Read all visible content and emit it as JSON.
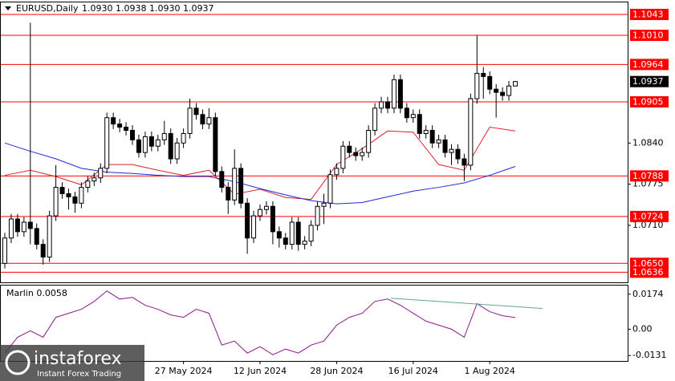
{
  "chart_data": {
    "type": "candlestick",
    "title": "EURUSD,Daily",
    "header_ohlc": "1.0930 1.0938 1.0930 1.0937",
    "categories": [
      null,
      null,
      null,
      null,
      null,
      null,
      null,
      null,
      null,
      null,
      null,
      null,
      null,
      null,
      null,
      null,
      null,
      null,
      null,
      null,
      null,
      null,
      null,
      null,
      null,
      null,
      null,
      null,
      "27 May 2024",
      null,
      null,
      null,
      null,
      null,
      null,
      null,
      null,
      null,
      null,
      null,
      "12 Jun 2024",
      null,
      null,
      null,
      null,
      null,
      null,
      null,
      null,
      null,
      null,
      null,
      "28 Jun 2024",
      null,
      null,
      null,
      null,
      null,
      null,
      null,
      null,
      null,
      null,
      null,
      "16 Jul 2024",
      null,
      null,
      null,
      null,
      null,
      null,
      null,
      null,
      null,
      null,
      null,
      "1 Aug 2024",
      null,
      null,
      null,
      null
    ],
    "open": [
      1.065,
      1.069,
      1.072,
      1.07,
      1.0715,
      1.0705,
      1.068,
      1.066,
      1.0725,
      1.077,
      1.076,
      1.0755,
      1.0745,
      1.077,
      1.078,
      1.0785,
      1.08,
      1.088,
      1.087,
      1.0865,
      1.086,
      1.0845,
      1.0825,
      1.085,
      1.0835,
      1.0845,
      1.0855,
      1.0815,
      1.084,
      1.0855,
      1.0895,
      1.0885,
      1.087,
      1.088,
      1.0795,
      1.077,
      1.075,
      1.08,
      1.0745,
      1.069,
      1.0725,
      1.0735,
      1.074,
      1.07,
      1.069,
      1.068,
      1.0715,
      1.068,
      1.0685,
      1.071,
      1.074,
      1.0745,
      1.079,
      1.08,
      1.0835,
      1.0825,
      1.082,
      1.0825,
      1.086,
      1.0895,
      1.0905,
      1.0895,
      1.094,
      1.0895,
      1.088,
      1.0885,
      1.0855,
      1.086,
      1.084,
      1.0845,
      1.0825,
      1.083,
      1.0815,
      1.0805,
      1.091,
      1.095,
      1.0945,
      1.0925,
      1.092,
      1.0915,
      1.093
    ],
    "high": [
      1.0698,
      1.0728,
      1.0728,
      1.0723,
      1.103,
      1.0713,
      1.0688,
      1.0733,
      1.0805,
      1.0778,
      1.0768,
      1.0763,
      1.0778,
      1.0788,
      1.0793,
      1.0808,
      1.0888,
      1.0888,
      1.0878,
      1.0873,
      1.0868,
      1.0853,
      1.0858,
      1.0858,
      1.0853,
      1.0875,
      1.0863,
      1.0848,
      1.0863,
      1.091,
      1.0903,
      1.0893,
      1.0895,
      1.0888,
      1.0803,
      1.0778,
      1.083,
      1.0808,
      1.0753,
      1.0733,
      1.0743,
      1.0748,
      1.0748,
      1.0708,
      1.0698,
      1.0723,
      1.0723,
      1.0693,
      1.0718,
      1.0748,
      1.076,
      1.0798,
      1.0808,
      1.0843,
      1.0843,
      1.0833,
      1.0833,
      1.0868,
      1.0903,
      1.0913,
      1.0913,
      1.0948,
      1.0948,
      1.0903,
      1.0893,
      1.0893,
      1.0868,
      1.0868,
      1.0853,
      1.0853,
      1.0838,
      1.0838,
      1.0823,
      1.0918,
      1.101,
      1.096,
      1.0953,
      1.0933,
      1.0928,
      1.0938,
      1.0938
    ],
    "low": [
      1.0642,
      1.0682,
      1.0692,
      1.0692,
      1.068,
      1.0672,
      1.0648,
      1.0652,
      1.0717,
      1.0752,
      1.0735,
      1.073,
      1.0737,
      1.0762,
      1.0772,
      1.0777,
      1.0792,
      1.0862,
      1.0857,
      1.0852,
      1.0837,
      1.0817,
      1.0817,
      1.0827,
      1.0827,
      1.0837,
      1.0807,
      1.0807,
      1.0832,
      1.0847,
      1.0877,
      1.0862,
      1.0862,
      1.0787,
      1.0762,
      1.0728,
      1.0742,
      1.0737,
      1.0665,
      1.0682,
      1.0717,
      1.0727,
      1.068,
      1.0675,
      1.0672,
      1.0672,
      1.067,
      1.0672,
      1.0677,
      1.0702,
      1.0712,
      1.0737,
      1.0782,
      1.0792,
      1.0817,
      1.0812,
      1.0812,
      1.0817,
      1.0852,
      1.0887,
      1.0887,
      1.0887,
      1.0887,
      1.0872,
      1.0872,
      1.0847,
      1.0847,
      1.0832,
      1.0832,
      1.0817,
      1.0805,
      1.0807,
      1.078,
      1.0797,
      1.0902,
      1.091,
      1.0917,
      1.088,
      1.0907,
      1.0907,
      1.093
    ],
    "close": [
      1.069,
      1.072,
      1.07,
      1.0715,
      1.0705,
      1.068,
      1.066,
      1.0725,
      1.077,
      1.076,
      1.0755,
      1.0745,
      1.077,
      1.078,
      1.0785,
      1.08,
      1.088,
      1.087,
      1.0865,
      1.086,
      1.0845,
      1.0825,
      1.085,
      1.0835,
      1.0845,
      1.0855,
      1.0815,
      1.084,
      1.0855,
      1.0895,
      1.0885,
      1.087,
      1.088,
      1.0795,
      1.077,
      1.075,
      1.08,
      1.0745,
      1.069,
      1.0725,
      1.0735,
      1.074,
      1.07,
      1.069,
      1.068,
      1.0715,
      1.068,
      1.0685,
      1.071,
      1.074,
      1.0745,
      1.079,
      1.08,
      1.0835,
      1.0825,
      1.082,
      1.0825,
      1.086,
      1.0895,
      1.0905,
      1.0895,
      1.094,
      1.0895,
      1.088,
      1.0885,
      1.0855,
      1.086,
      1.084,
      1.0845,
      1.0825,
      1.083,
      1.0815,
      1.0805,
      1.091,
      1.095,
      1.0945,
      1.0925,
      1.092,
      1.0915,
      1.093,
      1.0937
    ],
    "color": "#000000",
    "ylim": [
      1.062,
      1.1062
    ],
    "yticks": [
      {
        "value": 1.084,
        "label": "1.0840"
      },
      1.0775,
      {
        "value": 1.071,
        "label": "1.0710"
      }
    ],
    "levels": [
      1.1043,
      {
        "value": 1.101,
        "label": "1.1010"
      },
      1.0964,
      1.0905,
      1.0788,
      1.0724,
      {
        "value": 1.065,
        "label": "1.0650"
      },
      1.0636
    ],
    "level_color": "#ff0000",
    "last_price": 1.0937,
    "moving_averages": [
      {
        "color": "#e0202a",
        "x": [
          0,
          4,
          8,
          12,
          16,
          20,
          24,
          28,
          32,
          36,
          40,
          44,
          48,
          52,
          56,
          60,
          64,
          68,
          72,
          76,
          80
        ],
        "values": [
          1.0789,
          1.0797,
          1.0787,
          1.0774,
          1.0806,
          1.0806,
          1.0797,
          1.0789,
          1.0797,
          1.0759,
          1.0767,
          1.0754,
          1.0751,
          1.0806,
          1.0831,
          1.0859,
          1.0857,
          1.0806,
          1.0797,
          1.0865,
          1.0859
        ]
      },
      {
        "color": "#1e2ad8",
        "x": [
          0,
          4,
          8,
          12,
          16,
          20,
          24,
          28,
          32,
          36,
          40,
          44,
          48,
          52,
          56,
          60,
          64,
          68,
          72,
          76,
          80
        ],
        "values": [
          1.084,
          1.0827,
          1.0815,
          1.08,
          1.0794,
          1.0792,
          1.0789,
          1.0787,
          1.0787,
          1.0779,
          1.0768,
          1.0758,
          1.0749,
          1.0744,
          1.0746,
          1.0755,
          1.0764,
          1.077,
          1.0777,
          1.0789,
          1.0803
        ]
      }
    ],
    "oscillator": {
      "title": "Marlin 0.0058",
      "ylim": [
        -0.0158,
        0.0217
      ],
      "yticks": [
        0.0174,
        {
          "value": 0,
          "label": "0.00"
        },
        -0.0131
      ],
      "series": [
        {
          "color": "#8b1a8b",
          "x": [
            0,
            2,
            4,
            6,
            8,
            10,
            12,
            14,
            16,
            18,
            20,
            22,
            24,
            26,
            28,
            30,
            32,
            34,
            36,
            38,
            40,
            42,
            44,
            46,
            48,
            50,
            52,
            54,
            56,
            58,
            60,
            62,
            64,
            66,
            68,
            70,
            72,
            74,
            76,
            78,
            80
          ],
          "values": [
            -0.0119,
            -0.004,
            -0.0008,
            -0.004,
            0.0059,
            0.0079,
            0.0099,
            0.0138,
            0.019,
            0.015,
            0.0158,
            0.0119,
            0.0099,
            0.0071,
            0.0059,
            0.0099,
            0.0079,
            -0.0079,
            -0.0059,
            -0.0119,
            -0.0087,
            -0.0127,
            -0.0099,
            -0.0119,
            -0.0079,
            -0.0059,
            0.002,
            0.0059,
            0.0079,
            0.0138,
            0.015,
            0.0119,
            0.0079,
            0.004,
            0.002,
            0.0,
            -0.004,
            0.0127,
            0.0087,
            0.0067,
            0.0058
          ]
        },
        {
          "color": "#5fa88a",
          "x": [
            60.5,
            84.3
          ],
          "values": [
            0.0154,
            0.0103
          ]
        }
      ]
    }
  },
  "logo": {
    "name": "instaforex",
    "tagline": "Instant Forex Trading"
  }
}
